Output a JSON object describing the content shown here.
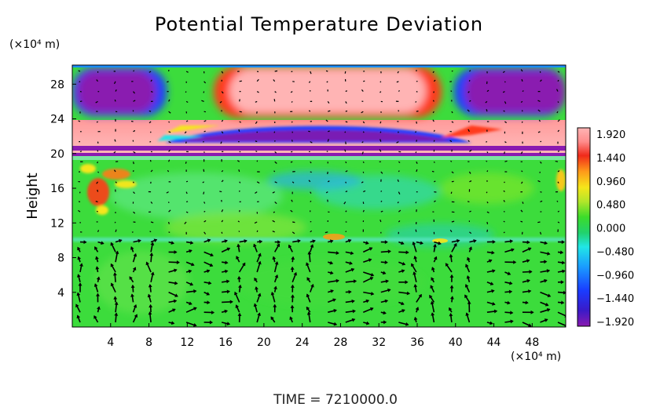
{
  "chart_data": {
    "type": "heatmap",
    "title": "Potential Temperature Deviation",
    "ylabel": "Height",
    "x_unit": "(×10⁴ m)",
    "y_unit": "(×10⁴ m)",
    "x_ticks": [
      4,
      8,
      12,
      16,
      20,
      24,
      28,
      32,
      36,
      40,
      44,
      48
    ],
    "y_ticks": [
      4,
      8,
      12,
      16,
      20,
      24,
      28
    ],
    "xlim": [
      0,
      51.5
    ],
    "ylim": [
      0,
      30.2
    ],
    "colorbar": {
      "labels": [
        "1.920",
        "1.440",
        "0.960",
        "0.480",
        "0.000",
        "−0.480",
        "−0.960",
        "−1.440",
        "−1.920"
      ],
      "range": [
        -1.92,
        1.92
      ],
      "colors": [
        "#8a1ab0",
        "#1a1ac8",
        "#1a8cff",
        "#21e6e6",
        "#21d24e",
        "#7ee62a",
        "#f5e61a",
        "#ff7a1a",
        "#e61a1a",
        "#ffb4b4"
      ]
    },
    "fields": [
      {
        "region": "top band left cell (x 0–10, y 24–30)",
        "value": -1.92
      },
      {
        "region": "top band centre cell (x 16–34, y 24–30)",
        "value": 1.92
      },
      {
        "region": "top band right cell (x 40–51, y 24–30)",
        "value": -1.92
      },
      {
        "region": "band y 21–23",
        "value": 1.92
      },
      {
        "region": "central lens (x 12–40, y 20–23)",
        "value": -1.92
      },
      {
        "region": "thin band y ≈ 20",
        "value": -1.92
      },
      {
        "region": "lower domain y 0–19",
        "value": 0.2
      }
    ]
  },
  "time_label": "TIME  =  7210000.0"
}
